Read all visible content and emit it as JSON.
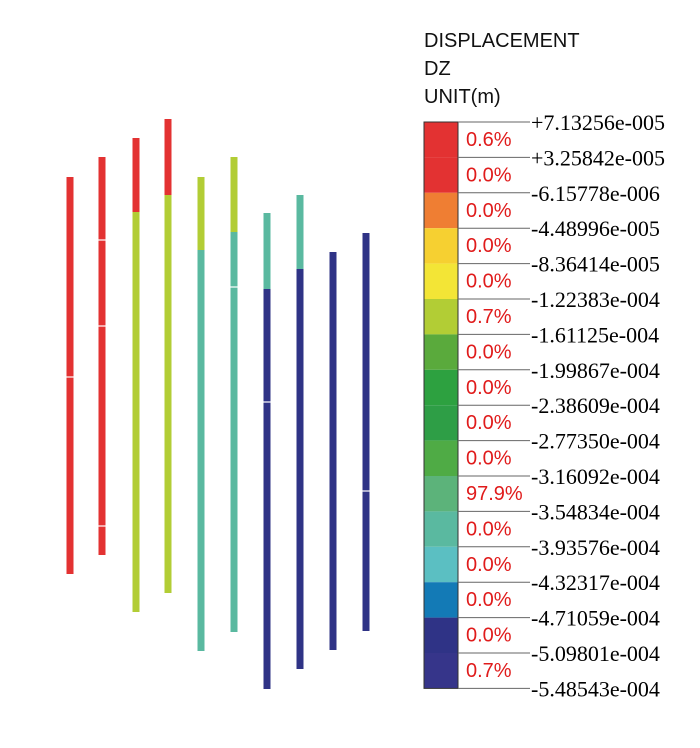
{
  "legend": {
    "title_lines": [
      "DISPLACEMENT",
      "DZ",
      "UNIT(m)"
    ],
    "tick_labels": [
      "+7.13256e-005",
      "+3.25842e-005",
      "-6.15778e-006",
      "-4.48996e-005",
      "-8.36414e-005",
      "-1.22383e-004",
      "-1.61125e-004",
      "-1.99867e-004",
      "-2.38609e-004",
      "-2.77350e-004",
      "-3.16092e-004",
      "-3.54834e-004",
      "-3.93576e-004",
      "-4.32317e-004",
      "-4.71059e-004",
      "-5.09801e-004",
      "-5.48543e-004"
    ],
    "bands": [
      {
        "color": "#e33232",
        "percent": "0.6%"
      },
      {
        "color": "#e33232",
        "percent": "0.0%"
      },
      {
        "color": "#ef7e33",
        "percent": "0.0%"
      },
      {
        "color": "#f6d031",
        "percent": "0.0%"
      },
      {
        "color": "#f3e536",
        "percent": "0.0%"
      },
      {
        "color": "#b2cd35",
        "percent": "0.7%"
      },
      {
        "color": "#5aaa3c",
        "percent": "0.0%"
      },
      {
        "color": "#2da140",
        "percent": "0.0%"
      },
      {
        "color": "#2e9e46",
        "percent": "0.0%"
      },
      {
        "color": "#4fab45",
        "percent": "0.0%"
      },
      {
        "color": "#5cb37a",
        "percent": "97.9%"
      },
      {
        "color": "#5ab9a0",
        "percent": "0.0%"
      },
      {
        "color": "#5bbfc2",
        "percent": "0.0%"
      },
      {
        "color": "#137ab6",
        "percent": "0.0%"
      },
      {
        "color": "#2f3386",
        "percent": "0.0%"
      },
      {
        "color": "#36358a",
        "percent": "0.7%"
      }
    ]
  },
  "chart_data": {
    "type": "other",
    "quantity": "DISPLACEMENT DZ",
    "unit": "m",
    "range": [
      -0.000548543,
      7.13256e-05
    ],
    "bands": [
      {
        "from": 7.13256e-05,
        "to": 3.25842e-05,
        "percent": 0.6
      },
      {
        "from": 3.25842e-05,
        "to": -6.15778e-06,
        "percent": 0.0
      },
      {
        "from": -6.15778e-06,
        "to": -4.48996e-05,
        "percent": 0.0
      },
      {
        "from": -4.48996e-05,
        "to": -8.36414e-05,
        "percent": 0.0
      },
      {
        "from": -8.36414e-05,
        "to": -0.000122383,
        "percent": 0.0
      },
      {
        "from": -0.000122383,
        "to": -0.000161125,
        "percent": 0.7
      },
      {
        "from": -0.000161125,
        "to": -0.000199867,
        "percent": 0.0
      },
      {
        "from": -0.000199867,
        "to": -0.000238609,
        "percent": 0.0
      },
      {
        "from": -0.000238609,
        "to": -0.00027735,
        "percent": 0.0
      },
      {
        "from": -0.00027735,
        "to": -0.000316092,
        "percent": 0.0
      },
      {
        "from": -0.000316092,
        "to": -0.000354834,
        "percent": 97.9
      },
      {
        "from": -0.000354834,
        "to": -0.000393576,
        "percent": 0.0
      },
      {
        "from": -0.000393576,
        "to": -0.000432317,
        "percent": 0.0
      },
      {
        "from": -0.000432317,
        "to": -0.000471059,
        "percent": 0.0
      },
      {
        "from": -0.000471059,
        "to": -0.000509801,
        "percent": 0.0
      },
      {
        "from": -0.000509801,
        "to": -0.000548543,
        "percent": 0.7
      }
    ],
    "piles": [
      {
        "segments": [
          {
            "color": "#e33232"
          }
        ]
      },
      {
        "segments": [
          {
            "color": "#e33232"
          }
        ]
      },
      {
        "segments": [
          {
            "color": "#e33232"
          },
          {
            "color": "#b2cd35"
          }
        ]
      },
      {
        "segments": [
          {
            "color": "#e33232"
          },
          {
            "color": "#b2cd35"
          }
        ]
      },
      {
        "segments": [
          {
            "color": "#b2cd35"
          },
          {
            "color": "#5ab9a0"
          }
        ]
      },
      {
        "segments": [
          {
            "color": "#b2cd35"
          },
          {
            "color": "#5ab9a0"
          }
        ]
      },
      {
        "segments": [
          {
            "color": "#5ab9a0"
          },
          {
            "color": "#2f3386"
          }
        ]
      },
      {
        "segments": [
          {
            "color": "#5ab9a0"
          },
          {
            "color": "#2f3386"
          }
        ]
      },
      {
        "segments": [
          {
            "color": "#2f3386"
          }
        ]
      },
      {
        "segments": [
          {
            "color": "#2f3386"
          }
        ]
      }
    ]
  }
}
